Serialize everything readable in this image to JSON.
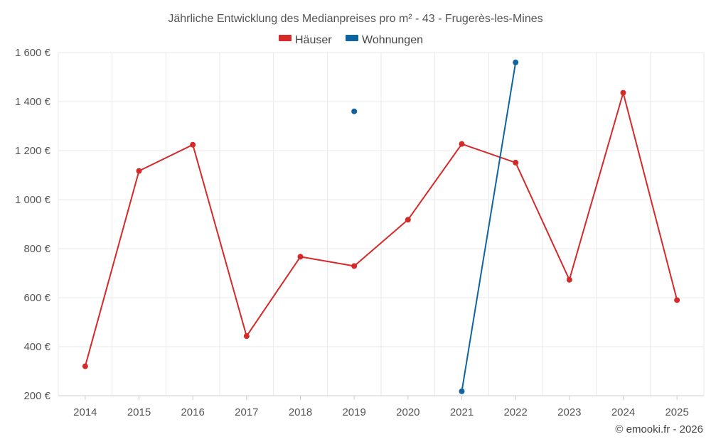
{
  "chart_data": {
    "type": "line",
    "title": "Jährliche Entwicklung des Medianpreises pro m² - 43 - Frugerès-les-Mines",
    "xlabel": "",
    "ylabel": "",
    "categories": [
      "2014",
      "2015",
      "2016",
      "2017",
      "2018",
      "2019",
      "2020",
      "2021",
      "2022",
      "2023",
      "2024",
      "2025"
    ],
    "ylim": [
      200,
      1600
    ],
    "yticks": [
      200,
      400,
      600,
      800,
      1000,
      1200,
      1400,
      1600
    ],
    "ytick_labels": [
      "200 €",
      "400 €",
      "600 €",
      "800 €",
      "1 000 €",
      "1 200 €",
      "1 400 €",
      "1 600 €"
    ],
    "grid": true,
    "legend_position": "top-center",
    "series": [
      {
        "name": "Häuser",
        "color": "#d42a2a",
        "values": [
          320,
          1117,
          1224,
          443,
          767,
          729,
          918,
          1227,
          1151,
          673,
          1436,
          590
        ]
      },
      {
        "name": "Wohnungen",
        "color": "#0f64a0",
        "values": [
          null,
          null,
          null,
          null,
          null,
          1360,
          null,
          218,
          1560,
          null,
          null,
          null
        ]
      }
    ]
  },
  "credit": "© emooki.fr - 2026"
}
